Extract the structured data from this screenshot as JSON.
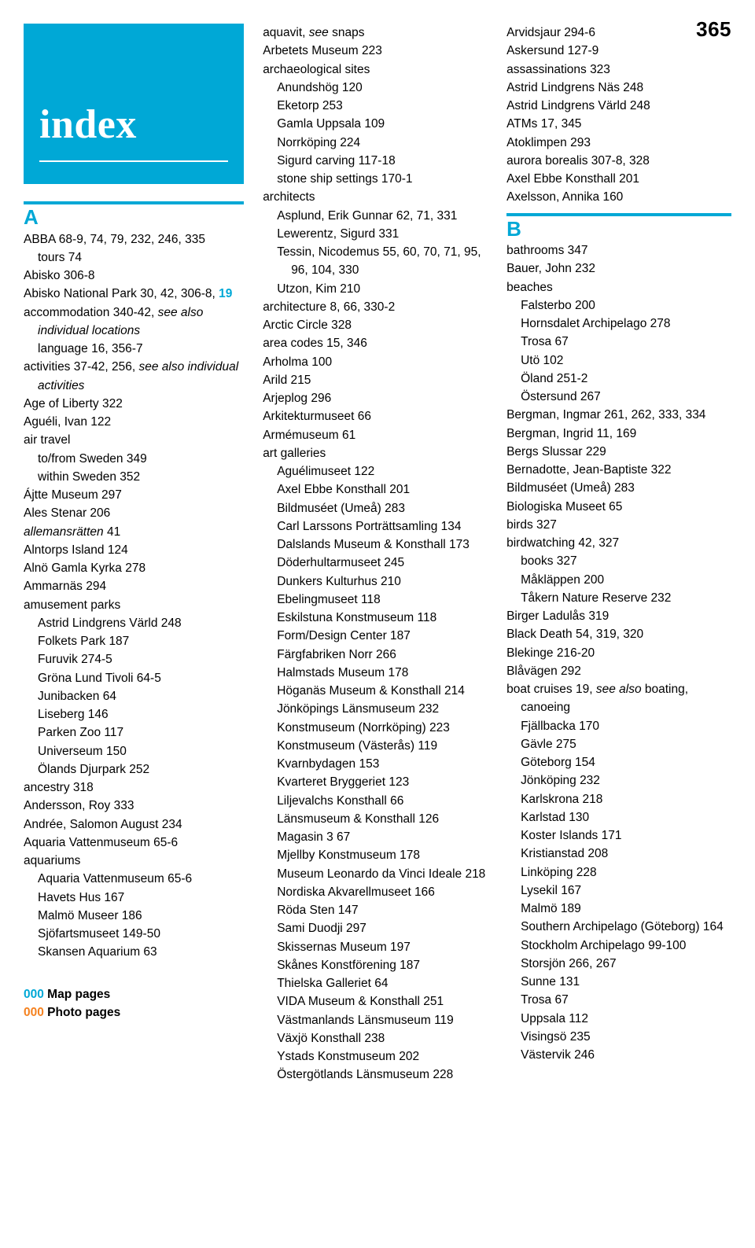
{
  "page_number": "365",
  "title": "index",
  "colors": {
    "accent": "#00a8d6",
    "orange": "#f58220"
  },
  "letters": {
    "A": "A",
    "B": "B"
  },
  "legend": {
    "map": "000 Map pages",
    "photo": "000 Photo pages"
  },
  "col1": {
    "e1": "ABBA 68-9, 74, 79, 232, 246, 335",
    "e1a": "tours 74",
    "e2": "Abisko 306-8",
    "e3a": "Abisko National Park 30, 42, 306-8,",
    "e3b": "19",
    "e4": "accommodation 340-42, ",
    "e4i": "see also individual locations",
    "e5": "language 16, 356-7",
    "e6": "activities 37-42, 256, ",
    "e6i": "see also individual activities",
    "e7": "Age of Liberty 322",
    "e8": "Aguéli, Ivan 122",
    "e9": "air travel",
    "e9a": "to/from Sweden 349",
    "e9b": "within Sweden 352",
    "e10": "Ájtte Museum 297",
    "e11": "Ales Stenar 206",
    "e12": "allemansrätten",
    "e12n": " 41",
    "e13": "Alntorps Island 124",
    "e14": "Alnö Gamla Kyrka 278",
    "e15": "Ammarnäs 294",
    "e16": "amusement parks",
    "e16a": "Astrid Lindgrens Värld 248",
    "e16b": "Folkets Park 187",
    "e16c": "Furuvik 274-5",
    "e16d": "Gröna Lund Tivoli 64-5",
    "e16e": "Junibacken 64",
    "e16f": "Liseberg 146",
    "e16g": "Parken Zoo 117",
    "e16h": "Universeum 150",
    "e16i": "Ölands Djurpark 252",
    "e17": "ancestry 318",
    "e18": "Andersson, Roy 333",
    "e19": "Andrée, Salomon August 234",
    "e20": "Aquaria Vattenmuseum 65-6",
    "e21": "aquariums",
    "e21a": "Aquaria Vattenmuseum 65-6",
    "e21b": "Havets Hus 167",
    "e21c": "Malmö Museer 186",
    "e21d": "Sjöfartsmuseet 149-50",
    "e21e": "Skansen Aquarium 63"
  },
  "col2": {
    "e1": "aquavit, ",
    "e1i": "see",
    "e1b": " snaps",
    "e2": "Arbetets Museum 223",
    "e3": "archaeological sites",
    "e3a": "Anundshög 120",
    "e3b": "Eketorp 253",
    "e3c": "Gamla Uppsala 109",
    "e3d": "Norrköping 224",
    "e3e": "Sigurd carving 117-18",
    "e3f": "stone ship settings 170-1",
    "e4": "architects",
    "e4a": "Asplund, Erik Gunnar 62, 71, 331",
    "e4b": "Lewerentz, Sigurd 331",
    "e4c": "Tessin, Nicodemus 55, 60, 70, 71, 95, 96, 104, 330",
    "e4d": "Utzon, Kim 210",
    "e5": "architecture 8, 66, 330-2",
    "e6": "Arctic Circle 328",
    "e7": "area codes 15, 346",
    "e8": "Arholma 100",
    "e9": "Arild 215",
    "e10": "Arjeplog 296",
    "e11": "Arkitekturmuseet 66",
    "e12": "Armémuseum 61",
    "e13": "art galleries",
    "e13a": "Aguélimuseet 122",
    "e13b": "Axel Ebbe Konsthall 201",
    "e13c": "Bildmuséet (Umeå) 283",
    "e13d": "Carl Larssons Porträttsamling 134",
    "e13e": "Dalslands Museum & Konsthall 173",
    "e13f": "Döderhultarmuseet 245",
    "e13g": "Dunkers Kulturhus 210",
    "e13h": "Ebelingmuseet 118",
    "e13i": "Eskilstuna Konstmuseum 118",
    "e13j": "Form/Design Center 187",
    "e13k": "Färgfabriken Norr 266",
    "e13l": "Halmstads Museum 178",
    "e13m": "Höganäs Museum & Konsthall 214",
    "e13n": "Jönköpings Länsmuseum 232",
    "e13o": "Konstmuseum (Norrköping) 223",
    "e13p": "Konstmuseum (Västerås) 119",
    "e13q": "Kvarnbydagen 153",
    "e13r": "Kvarteret Bryggeriet 123",
    "e13s": "Liljevalchs Konsthall 66",
    "e13t": "Länsmuseum & Konsthall 126",
    "e13u": "Magasin 3 67",
    "e13v": "Mjellby Konstmuseum 178",
    "e13w": "Museum Leonardo da Vinci Ideale 218",
    "e13x": "Nordiska Akvarellmuseet 166",
    "e13y": "Röda Sten 147",
    "e13z": "Sami Duodji 297",
    "e13aa": "Skissernas Museum 197",
    "e13ab": "Skånes Konstförening 187",
    "e13ac": "Thielska Galleriet 64",
    "e13ad": "VIDA Museum & Konsthall 251",
    "e13ae": "Västmanlands Länsmuseum 119",
    "e13af": "Växjö Konsthall 238",
    "e13ag": "Ystads Konstmuseum 202",
    "e13ah": "Östergötlands Länsmuseum 228"
  },
  "col3": {
    "e1": "Arvidsjaur 294-6",
    "e2": "Askersund 127-9",
    "e3": "assassinations 323",
    "e4": "Astrid Lindgrens Näs 248",
    "e5": "Astrid Lindgrens Värld 248",
    "e6": "ATMs 17, 345",
    "e7": "Atoklimpen 293",
    "e8": "aurora borealis 307-8, 328",
    "e9": "Axel Ebbe Konsthall 201",
    "e10": "Axelsson, Annika 160",
    "b1": "bathrooms 347",
    "b2": "Bauer, John 232",
    "b3": "beaches",
    "b3a": "Falsterbo 200",
    "b3b": "Hornsdalet Archipelago 278",
    "b3c": "Trosa 67",
    "b3d": "Utö 102",
    "b3e": "Öland 251-2",
    "b3f": "Östersund 267",
    "b4": "Bergman, Ingmar 261, 262, 333, 334",
    "b5": "Bergman, Ingrid 11, 169",
    "b6": "Bergs Slussar 229",
    "b7": "Bernadotte, Jean-Baptiste 322",
    "b8": "Bildmuséet (Umeå) 283",
    "b9": "Biologiska Museet 65",
    "b10": "birds 327",
    "b11": "birdwatching 42, 327",
    "b11a": "books 327",
    "b11b": "Måkläppen 200",
    "b11c": "Tåkern Nature Reserve 232",
    "b12": "Birger Ladulås 319",
    "b13": "Black Death 54, 319, 320",
    "b14": "Blekinge 216-20",
    "b15": "Blåvägen 292",
    "b16": "boat cruises 19, ",
    "b16i": "see also",
    "b16b": " boating, canoeing",
    "b16c": "Fjällbacka 170",
    "b16d": "Gävle 275",
    "b16e": "Göteborg 154",
    "b16f": "Jönköping 232",
    "b16g": "Karlskrona 218",
    "b16h": "Karlstad 130",
    "b16ii": "Koster Islands 171",
    "b16j": "Kristianstad 208",
    "b16k": "Linköping 228",
    "b16l": "Lysekil 167",
    "b16m": "Malmö 189",
    "b16n": "Southern Archipelago (Göteborg) 164",
    "b16o": "Stockholm Archipelago 99-100",
    "b16p": "Storsjön 266, 267",
    "b16q": "Sunne 131",
    "b16r": "Trosa 67",
    "b16s": "Uppsala 112",
    "b16t": "Visingsö 235",
    "b16u": "Västervik 246"
  }
}
